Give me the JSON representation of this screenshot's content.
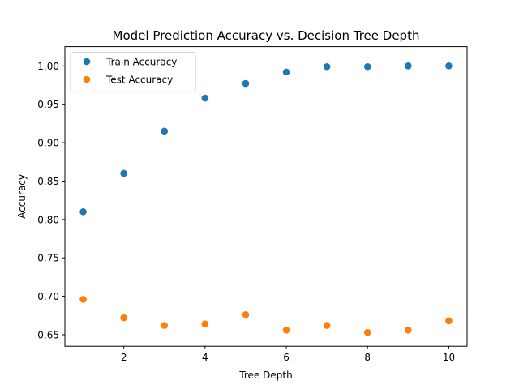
{
  "chart_data": {
    "type": "scatter",
    "title": "Model Prediction Accuracy vs. Decision Tree Depth",
    "xlabel": "Tree Depth",
    "ylabel": "Accuracy",
    "x": [
      1,
      2,
      3,
      4,
      5,
      6,
      7,
      8,
      9,
      10
    ],
    "xlim": [
      0.55,
      10.45
    ],
    "ylim": [
      0.635,
      1.025
    ],
    "xticks": [
      2,
      4,
      6,
      8,
      10
    ],
    "xtick_labels": [
      "2",
      "4",
      "6",
      "8",
      "10"
    ],
    "yticks": [
      0.65,
      0.7,
      0.75,
      0.8,
      0.85,
      0.9,
      0.95,
      1.0
    ],
    "ytick_labels": [
      "0.65",
      "0.70",
      "0.75",
      "0.80",
      "0.85",
      "0.90",
      "0.95",
      "1.00"
    ],
    "grid": false,
    "legend_position": "top-left",
    "series": [
      {
        "name": "Train Accuracy",
        "color": "#1f77b4",
        "values": [
          0.81,
          0.86,
          0.915,
          0.958,
          0.977,
          0.992,
          0.999,
          0.999,
          1.0,
          1.0
        ]
      },
      {
        "name": "Test Accuracy",
        "color": "#ff7f0e",
        "values": [
          0.696,
          0.672,
          0.662,
          0.664,
          0.676,
          0.656,
          0.662,
          0.653,
          0.656,
          0.668
        ]
      }
    ]
  }
}
